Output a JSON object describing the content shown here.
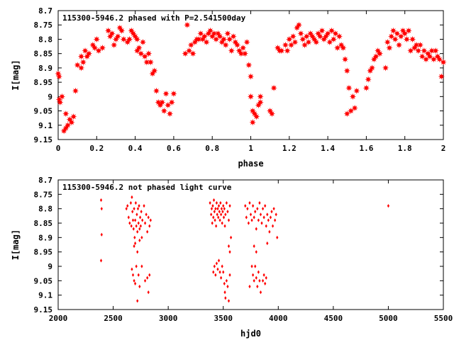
{
  "chart_data": [
    {
      "type": "scatter",
      "title": "115300-5946.2 phased with P=2.541500day",
      "xlabel": "phase",
      "ylabel": "I[mag]",
      "xlim": [
        0,
        2
      ],
      "ylim": [
        8.7,
        9.15
      ],
      "y_inverted": true,
      "marker": "star",
      "color": "#ff0000",
      "xticks": [
        "0",
        "0.2",
        "0.4",
        "0.6",
        "0.8",
        "1",
        "1.2",
        "1.4",
        "1.6",
        "1.8",
        "2"
      ],
      "yticks": [
        "8.7",
        "8.75",
        "8.8",
        "8.85",
        "8.9",
        "8.95",
        "9",
        "9.05",
        "9.1",
        "9.15"
      ],
      "points": [
        [
          0.0,
          8.92
        ],
        [
          0.005,
          8.93
        ],
        [
          0.005,
          9.01
        ],
        [
          0.01,
          9.02
        ],
        [
          0.02,
          9.0
        ],
        [
          0.03,
          9.12
        ],
        [
          0.04,
          9.06
        ],
        [
          0.04,
          9.11
        ],
        [
          0.05,
          9.1
        ],
        [
          0.06,
          9.08
        ],
        [
          0.07,
          9.09
        ],
        [
          0.08,
          9.07
        ],
        [
          0.09,
          8.98
        ],
        [
          0.1,
          8.89
        ],
        [
          0.12,
          8.9
        ],
        [
          0.12,
          8.86
        ],
        [
          0.13,
          8.88
        ],
        [
          0.14,
          8.84
        ],
        [
          0.15,
          8.86
        ],
        [
          0.16,
          8.85
        ],
        [
          0.18,
          8.82
        ],
        [
          0.19,
          8.83
        ],
        [
          0.2,
          8.8
        ],
        [
          0.21,
          8.84
        ],
        [
          0.23,
          8.83
        ],
        [
          0.26,
          8.77
        ],
        [
          0.27,
          8.79
        ],
        [
          0.28,
          8.78
        ],
        [
          0.29,
          8.82
        ],
        [
          0.3,
          8.8
        ],
        [
          0.31,
          8.79
        ],
        [
          0.32,
          8.76
        ],
        [
          0.33,
          8.77
        ],
        [
          0.34,
          8.8
        ],
        [
          0.36,
          8.81
        ],
        [
          0.37,
          8.8
        ],
        [
          0.38,
          8.77
        ],
        [
          0.39,
          8.78
        ],
        [
          0.4,
          8.79
        ],
        [
          0.41,
          8.8
        ],
        [
          0.41,
          8.84
        ],
        [
          0.42,
          8.83
        ],
        [
          0.43,
          8.85
        ],
        [
          0.44,
          8.81
        ],
        [
          0.45,
          8.86
        ],
        [
          0.46,
          8.88
        ],
        [
          0.47,
          8.85
        ],
        [
          0.48,
          8.88
        ],
        [
          0.49,
          8.92
        ],
        [
          0.5,
          8.91
        ],
        [
          0.51,
          8.98
        ],
        [
          0.52,
          9.02
        ],
        [
          0.53,
          9.03
        ],
        [
          0.54,
          9.02
        ],
        [
          0.55,
          9.05
        ],
        [
          0.56,
          8.99
        ],
        [
          0.57,
          9.03
        ],
        [
          0.58,
          9.06
        ],
        [
          0.59,
          9.02
        ],
        [
          0.6,
          8.99
        ],
        [
          0.66,
          8.85
        ],
        [
          0.67,
          8.75
        ],
        [
          0.68,
          8.84
        ],
        [
          0.69,
          8.82
        ],
        [
          0.7,
          8.85
        ],
        [
          0.71,
          8.81
        ],
        [
          0.72,
          8.8
        ],
        [
          0.73,
          8.8
        ],
        [
          0.74,
          8.78
        ],
        [
          0.75,
          8.8
        ],
        [
          0.76,
          8.79
        ],
        [
          0.77,
          8.81
        ],
        [
          0.78,
          8.78
        ],
        [
          0.79,
          8.77
        ],
        [
          0.8,
          8.79
        ],
        [
          0.81,
          8.78
        ],
        [
          0.82,
          8.8
        ],
        [
          0.83,
          8.78
        ],
        [
          0.84,
          8.79
        ],
        [
          0.85,
          8.81
        ],
        [
          0.86,
          8.8
        ],
        [
          0.87,
          8.82
        ],
        [
          0.88,
          8.78
        ],
        [
          0.89,
          8.8
        ],
        [
          0.9,
          8.84
        ],
        [
          0.91,
          8.79
        ],
        [
          0.92,
          8.81
        ],
        [
          0.93,
          8.82
        ],
        [
          0.94,
          8.84
        ],
        [
          0.95,
          8.85
        ],
        [
          0.96,
          8.83
        ],
        [
          0.97,
          8.85
        ],
        [
          0.98,
          8.81
        ],
        [
          0.99,
          8.89
        ],
        [
          1.0,
          8.93
        ],
        [
          1.0,
          9.0
        ],
        [
          1.01,
          9.05
        ],
        [
          1.01,
          9.09
        ],
        [
          1.02,
          9.06
        ],
        [
          1.03,
          9.07
        ],
        [
          1.04,
          9.03
        ],
        [
          1.05,
          9.02
        ],
        [
          1.05,
          9.0
        ],
        [
          1.1,
          9.05
        ],
        [
          1.11,
          9.06
        ],
        [
          1.12,
          8.97
        ],
        [
          1.14,
          8.83
        ],
        [
          1.15,
          8.84
        ],
        [
          1.16,
          8.84
        ],
        [
          1.18,
          8.82
        ],
        [
          1.19,
          8.84
        ],
        [
          1.2,
          8.8
        ],
        [
          1.21,
          8.82
        ],
        [
          1.22,
          8.79
        ],
        [
          1.23,
          8.81
        ],
        [
          1.24,
          8.76
        ],
        [
          1.25,
          8.75
        ],
        [
          1.26,
          8.78
        ],
        [
          1.27,
          8.8
        ],
        [
          1.28,
          8.82
        ],
        [
          1.29,
          8.79
        ],
        [
          1.3,
          8.81
        ],
        [
          1.31,
          8.78
        ],
        [
          1.32,
          8.79
        ],
        [
          1.33,
          8.8
        ],
        [
          1.34,
          8.81
        ],
        [
          1.35,
          8.78
        ],
        [
          1.36,
          8.79
        ],
        [
          1.37,
          8.77
        ],
        [
          1.38,
          8.8
        ],
        [
          1.39,
          8.79
        ],
        [
          1.4,
          8.78
        ],
        [
          1.41,
          8.81
        ],
        [
          1.42,
          8.77
        ],
        [
          1.43,
          8.8
        ],
        [
          1.44,
          8.78
        ],
        [
          1.45,
          8.83
        ],
        [
          1.46,
          8.79
        ],
        [
          1.47,
          8.82
        ],
        [
          1.48,
          8.83
        ],
        [
          1.49,
          8.87
        ],
        [
          1.5,
          8.91
        ],
        [
          1.5,
          9.06
        ],
        [
          1.51,
          8.97
        ],
        [
          1.52,
          9.05
        ],
        [
          1.53,
          9.0
        ],
        [
          1.54,
          9.04
        ],
        [
          1.55,
          8.98
        ],
        [
          1.6,
          8.97
        ],
        [
          1.61,
          8.94
        ],
        [
          1.62,
          8.91
        ],
        [
          1.63,
          8.9
        ],
        [
          1.64,
          8.87
        ],
        [
          1.65,
          8.86
        ],
        [
          1.66,
          8.84
        ],
        [
          1.67,
          8.85
        ],
        [
          1.7,
          8.9
        ],
        [
          1.71,
          8.81
        ],
        [
          1.72,
          8.83
        ],
        [
          1.73,
          8.79
        ],
        [
          1.74,
          8.77
        ],
        [
          1.75,
          8.8
        ],
        [
          1.76,
          8.78
        ],
        [
          1.77,
          8.82
        ],
        [
          1.78,
          8.79
        ],
        [
          1.79,
          8.77
        ],
        [
          1.8,
          8.78
        ],
        [
          1.81,
          8.8
        ],
        [
          1.82,
          8.77
        ],
        [
          1.83,
          8.84
        ],
        [
          1.84,
          8.8
        ],
        [
          1.85,
          8.83
        ],
        [
          1.86,
          8.82
        ],
        [
          1.87,
          8.84
        ],
        [
          1.88,
          8.82
        ],
        [
          1.89,
          8.86
        ],
        [
          1.9,
          8.84
        ],
        [
          1.91,
          8.87
        ],
        [
          1.92,
          8.85
        ],
        [
          1.93,
          8.86
        ],
        [
          1.94,
          8.84
        ],
        [
          1.95,
          8.87
        ],
        [
          1.96,
          8.84
        ],
        [
          1.97,
          8.86
        ],
        [
          1.98,
          8.87
        ],
        [
          1.99,
          8.93
        ],
        [
          2.0,
          8.88
        ]
      ]
    },
    {
      "type": "scatter",
      "title": "115300-5946.2 not phased light curve",
      "xlabel": "hjd0",
      "ylabel": "I[mag]",
      "xlim": [
        2000,
        5500
      ],
      "ylim": [
        8.7,
        9.15
      ],
      "y_inverted": true,
      "marker": "dot",
      "color": "#ff0000",
      "xticks": [
        "2000",
        "2500",
        "3000",
        "3500",
        "4000",
        "4500",
        "5000",
        "5500"
      ],
      "yticks": [
        "8.7",
        "8.75",
        "8.8",
        "8.85",
        "8.9",
        "8.95",
        "9",
        "9.05",
        "9.1",
        "9.15"
      ],
      "points": [
        [
          2390,
          8.77
        ],
        [
          2395,
          8.8
        ],
        [
          2395,
          8.89
        ],
        [
          2390,
          8.98
        ],
        [
          2620,
          8.8
        ],
        [
          2630,
          8.79
        ],
        [
          2640,
          8.83
        ],
        [
          2650,
          8.85
        ],
        [
          2660,
          8.78
        ],
        [
          2665,
          8.86
        ],
        [
          2670,
          8.76
        ],
        [
          2675,
          8.81
        ],
        [
          2680,
          8.84
        ],
        [
          2685,
          8.87
        ],
        [
          2690,
          8.8
        ],
        [
          2695,
          8.9
        ],
        [
          2700,
          8.84
        ],
        [
          2705,
          8.78
        ],
        [
          2710,
          8.86
        ],
        [
          2715,
          8.82
        ],
        [
          2720,
          8.88
        ],
        [
          2725,
          8.8
        ],
        [
          2730,
          8.85
        ],
        [
          2735,
          8.79
        ],
        [
          2740,
          8.87
        ],
        [
          2745,
          8.83
        ],
        [
          2750,
          8.86
        ],
        [
          2755,
          8.81
        ],
        [
          2760,
          8.9
        ],
        [
          2765,
          8.84
        ],
        [
          2780,
          8.79
        ],
        [
          2790,
          8.85
        ],
        [
          2800,
          8.82
        ],
        [
          2810,
          8.88
        ],
        [
          2820,
          8.83
        ],
        [
          2830,
          8.86
        ],
        [
          2840,
          8.84
        ],
        [
          2670,
          9.01
        ],
        [
          2680,
          9.03
        ],
        [
          2690,
          9.05
        ],
        [
          2700,
          9.06
        ],
        [
          2710,
          9.0
        ],
        [
          2720,
          9.12
        ],
        [
          2730,
          9.03
        ],
        [
          2740,
          9.07
        ],
        [
          2760,
          9.0
        ],
        [
          2790,
          9.05
        ],
        [
          2810,
          9.04
        ],
        [
          2820,
          9.09
        ],
        [
          2830,
          9.03
        ],
        [
          2690,
          8.93
        ],
        [
          2700,
          8.92
        ],
        [
          2720,
          8.95
        ],
        [
          2740,
          8.91
        ],
        [
          3380,
          8.78
        ],
        [
          3390,
          8.82
        ],
        [
          3395,
          8.8
        ],
        [
          3400,
          8.85
        ],
        [
          3405,
          8.79
        ],
        [
          3410,
          8.83
        ],
        [
          3415,
          8.77
        ],
        [
          3420,
          8.81
        ],
        [
          3425,
          8.84
        ],
        [
          3430,
          8.8
        ],
        [
          3435,
          8.86
        ],
        [
          3440,
          8.78
        ],
        [
          3445,
          8.82
        ],
        [
          3450,
          8.8
        ],
        [
          3455,
          8.83
        ],
        [
          3460,
          8.79
        ],
        [
          3465,
          8.81
        ],
        [
          3470,
          8.84
        ],
        [
          3475,
          8.78
        ],
        [
          3480,
          8.82
        ],
        [
          3485,
          8.8
        ],
        [
          3490,
          8.85
        ],
        [
          3495,
          8.81
        ],
        [
          3500,
          8.79
        ],
        [
          3505,
          8.83
        ],
        [
          3510,
          8.8
        ],
        [
          3515,
          8.86
        ],
        [
          3520,
          8.82
        ],
        [
          3530,
          8.78
        ],
        [
          3540,
          8.81
        ],
        [
          3550,
          8.84
        ],
        [
          3560,
          8.79
        ],
        [
          3410,
          9.02
        ],
        [
          3420,
          9.0
        ],
        [
          3430,
          9.03
        ],
        [
          3440,
          8.99
        ],
        [
          3450,
          9.01
        ],
        [
          3460,
          8.98
        ],
        [
          3470,
          9.02
        ],
        [
          3480,
          9.04
        ],
        [
          3490,
          9.0
        ],
        [
          3500,
          9.02
        ],
        [
          3510,
          9.06
        ],
        [
          3515,
          9.09
        ],
        [
          3520,
          9.11
        ],
        [
          3530,
          9.05
        ],
        [
          3540,
          9.07
        ],
        [
          3550,
          9.12
        ],
        [
          3560,
          9.03
        ],
        [
          3550,
          8.93
        ],
        [
          3560,
          8.95
        ],
        [
          3570,
          8.9
        ],
        [
          3700,
          8.79
        ],
        [
          3710,
          8.83
        ],
        [
          3720,
          8.8
        ],
        [
          3730,
          8.85
        ],
        [
          3740,
          8.78
        ],
        [
          3750,
          8.82
        ],
        [
          3760,
          8.84
        ],
        [
          3770,
          8.79
        ],
        [
          3780,
          8.83
        ],
        [
          3790,
          8.81
        ],
        [
          3800,
          8.87
        ],
        [
          3810,
          8.8
        ],
        [
          3820,
          8.84
        ],
        [
          3830,
          8.78
        ],
        [
          3840,
          8.82
        ],
        [
          3850,
          8.85
        ],
        [
          3860,
          8.8
        ],
        [
          3870,
          8.83
        ],
        [
          3880,
          8.79
        ],
        [
          3890,
          8.86
        ],
        [
          3900,
          8.82
        ],
        [
          3910,
          8.84
        ],
        [
          3920,
          8.88
        ],
        [
          3930,
          8.83
        ],
        [
          3940,
          8.81
        ],
        [
          3950,
          8.86
        ],
        [
          3960,
          8.8
        ],
        [
          3970,
          8.84
        ],
        [
          3980,
          8.82
        ],
        [
          3990,
          8.9
        ],
        [
          3760,
          9.0
        ],
        [
          3770,
          9.03
        ],
        [
          3780,
          9.05
        ],
        [
          3790,
          9.0
        ],
        [
          3800,
          9.04
        ],
        [
          3810,
          9.07
        ],
        [
          3820,
          9.02
        ],
        [
          3830,
          9.05
        ],
        [
          3840,
          9.09
        ],
        [
          3860,
          9.05
        ],
        [
          3870,
          9.03
        ],
        [
          3880,
          9.06
        ],
        [
          3890,
          9.04
        ],
        [
          3740,
          9.07
        ],
        [
          3780,
          8.93
        ],
        [
          3800,
          8.95
        ],
        [
          3900,
          8.92
        ],
        [
          5000,
          8.79
        ]
      ]
    }
  ]
}
